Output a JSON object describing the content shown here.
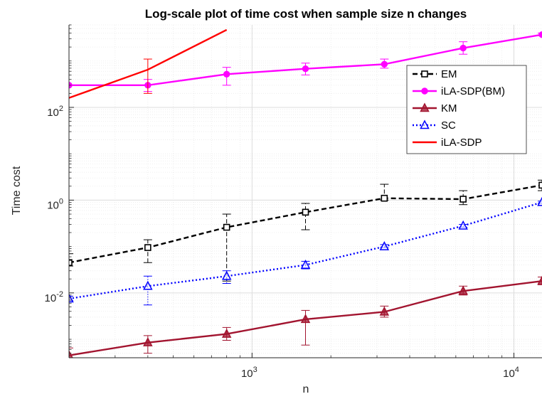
{
  "chart_data": {
    "type": "line",
    "title": "Log-scale plot of time cost when sample size n changes",
    "xlabel": "n",
    "ylabel": "Time cost",
    "xscale": "log",
    "yscale": "log",
    "xlim": [
      200,
      12800
    ],
    "ylim": [
      0.0004,
      6000
    ],
    "xticks": [
      {
        "value": 1000,
        "base": "10",
        "exp": "3"
      },
      {
        "value": 10000,
        "base": "10",
        "exp": "4"
      }
    ],
    "yticks": [
      {
        "value": 0.01,
        "base": "10",
        "exp": "-2"
      },
      {
        "value": 1,
        "base": "10",
        "exp": "0"
      },
      {
        "value": 100,
        "base": "10",
        "exp": "2"
      }
    ],
    "grid": true,
    "minor_grid": true,
    "legend_position": "upper-right",
    "x": [
      200,
      400,
      800,
      1600,
      3200,
      6400,
      12800
    ],
    "series": [
      {
        "name": "EM",
        "color": "#000000",
        "line": "dashed",
        "marker": "square",
        "x": [
          200,
          400,
          800,
          1600,
          3200,
          6400,
          12800
        ],
        "values": [
          0.045,
          0.095,
          0.26,
          0.55,
          1.1,
          1.05,
          2.1
        ],
        "err_low": [
          0.038,
          0.045,
          0.018,
          0.23,
          1.0,
          0.8,
          1.6
        ],
        "err_high": [
          0.07,
          0.14,
          0.5,
          0.85,
          2.2,
          1.6,
          2.7
        ]
      },
      {
        "name": "iLA-SDP(BM)",
        "color": "#ff00ff",
        "line": "solid",
        "marker": "circle",
        "x": [
          200,
          400,
          800,
          1600,
          3200,
          6400,
          12800
        ],
        "values": [
          300,
          300,
          520,
          680,
          850,
          1900,
          3700
        ],
        "err_low": [
          300,
          220,
          300,
          500,
          700,
          1400,
          3500
        ],
        "err_high": [
          300,
          400,
          730,
          900,
          1100,
          2600,
          4000
        ]
      },
      {
        "name": "KM",
        "color": "#a2142f",
        "line": "solid",
        "marker": "triangle",
        "x": [
          200,
          400,
          800,
          1600,
          3200,
          6400,
          12800
        ],
        "values": [
          0.00045,
          0.00085,
          0.0013,
          0.0027,
          0.0039,
          0.011,
          0.018
        ],
        "err_low": [
          0.0004,
          0.0005,
          0.00095,
          0.00075,
          0.003,
          0.009,
          0.015
        ],
        "err_high": [
          0.00065,
          0.0012,
          0.0018,
          0.0042,
          0.0052,
          0.014,
          0.022
        ]
      },
      {
        "name": "SC",
        "color": "#0000ff",
        "line": "dotted",
        "marker": "triangle",
        "x": [
          200,
          400,
          800,
          1600,
          3200,
          6400,
          12800
        ],
        "values": [
          0.0075,
          0.014,
          0.023,
          0.04,
          0.1,
          0.28,
          0.9
        ],
        "err_low": [
          0.0068,
          0.0055,
          0.016,
          0.033,
          0.095,
          0.26,
          0.85
        ],
        "err_high": [
          0.0085,
          0.023,
          0.03,
          0.048,
          0.11,
          0.3,
          0.95
        ]
      },
      {
        "name": "iLA-SDP",
        "color": "#ff0000",
        "line": "solid",
        "marker": "none",
        "x": [
          200,
          400,
          800
        ],
        "values": [
          160,
          650,
          4700
        ],
        "err_low": [
          160,
          200,
          4700
        ],
        "err_high": [
          160,
          1100,
          4700
        ]
      }
    ]
  }
}
